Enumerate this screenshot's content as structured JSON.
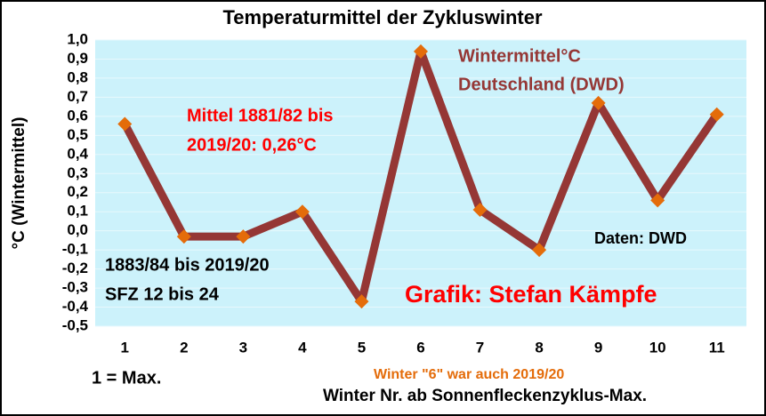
{
  "chart_data": {
    "type": "line",
    "title": "Temperaturmittel der Zykluswinter",
    "x_label": "Winter Nr. ab Sonnenfleckenzyklus-Max.",
    "y_label": "°C (Wintermittel)",
    "categories": [
      "1",
      "2",
      "3",
      "4",
      "5",
      "6",
      "7",
      "8",
      "9",
      "10",
      "11"
    ],
    "series": [
      {
        "name": "Wintermittel°C Deutschland (DWD)",
        "color": "#953735",
        "marker_color": "#e46c0a",
        "values": [
          0.56,
          -0.03,
          -0.03,
          0.1,
          -0.37,
          0.94,
          0.11,
          -0.1,
          0.67,
          0.16,
          0.61
        ]
      }
    ],
    "ylim": [
      -0.5,
      1.0
    ],
    "yticks": [
      {
        "value": 1.0,
        "label": "1,0"
      },
      {
        "value": 0.9,
        "label": "0,9"
      },
      {
        "value": 0.8,
        "label": "0,8"
      },
      {
        "value": 0.7,
        "label": "0,7"
      },
      {
        "value": 0.6,
        "label": "0,6"
      },
      {
        "value": 0.5,
        "label": "0,5"
      },
      {
        "value": 0.4,
        "label": "0,4"
      },
      {
        "value": 0.3,
        "label": "0,3"
      },
      {
        "value": 0.2,
        "label": "0,2"
      },
      {
        "value": 0.1,
        "label": "0,1"
      },
      {
        "value": 0,
        "label": "0,0"
      },
      {
        "value": -0.1,
        "label": "-0,1"
      },
      {
        "value": -0.2,
        "label": "-0,2"
      },
      {
        "value": -0.3,
        "label": "-0,3"
      },
      {
        "value": -0.4,
        "label": "-0,4"
      },
      {
        "value": -0.5,
        "label": "-0,5"
      }
    ],
    "grid": true,
    "annotations": [
      "Wintermittel°C",
      "Deutschland (DWD)",
      "Mittel 1881/82 bis",
      "2019/20: 0,26°C",
      "Daten: DWD",
      "1883/84 bis 2019/20",
      "SFZ 12 bis 24",
      "Grafik: Stefan Kämpfe",
      "1 = Max.",
      "Winter \"6\"  war auch 2019/20"
    ]
  }
}
